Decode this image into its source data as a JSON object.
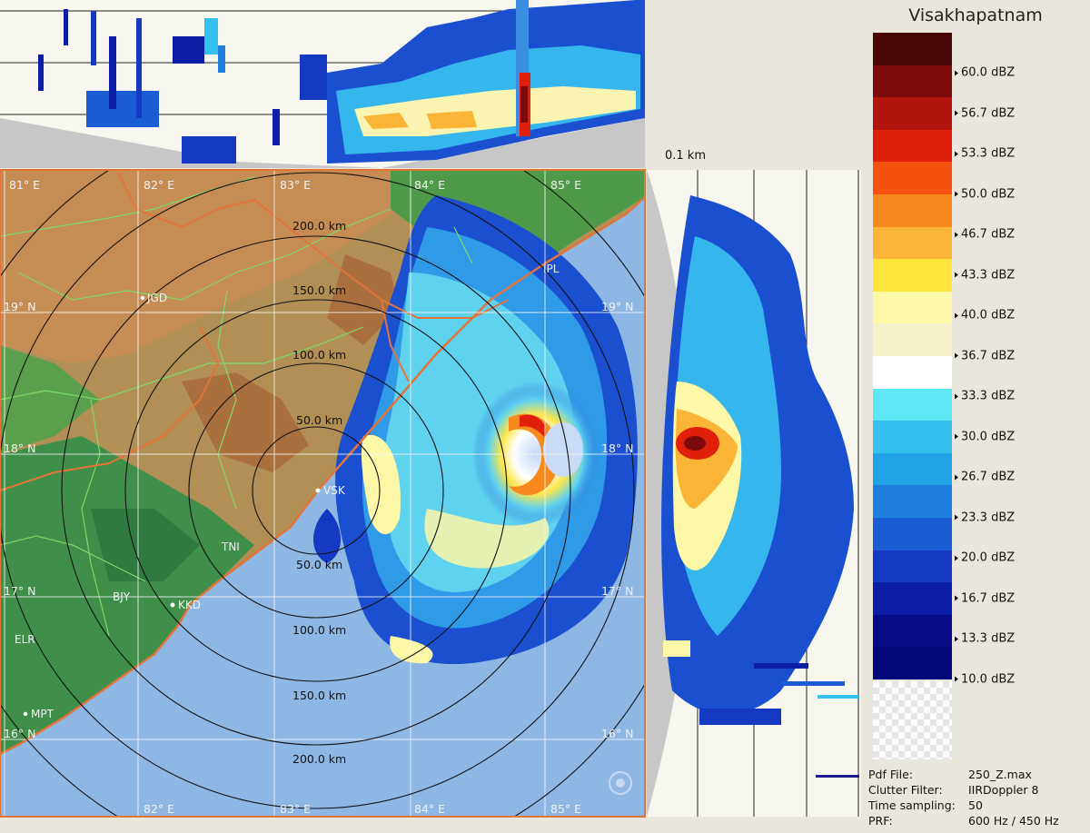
{
  "legend": {
    "station": "Visakhapatnam",
    "colors": [
      "#4a0606",
      "#7c0a0a",
      "#b1150d",
      "#e1200c",
      "#f6520f",
      "#f88a1d",
      "#fab436",
      "#fee53c",
      "#fdf7a8",
      "#f5f2c9",
      "#ffffff",
      "#5fe6f5",
      "#35c1ed",
      "#21a1e6",
      "#1f7fdc",
      "#1a5cd2",
      "#1539c2",
      "#0d1ea6",
      "#070c86",
      "#05087a"
    ],
    "ticks": [
      "60.0 dBZ",
      "56.7 dBZ",
      "53.3 dBZ",
      "50.0 dBZ",
      "46.7 dBZ",
      "43.3 dBZ",
      "40.0 dBZ",
      "36.7 dBZ",
      "33.3 dBZ",
      "30.0 dBZ",
      "26.7 dBZ",
      "23.3 dBZ",
      "20.0 dBZ",
      "16.7 dBZ",
      "13.3 dBZ",
      "10.0 dBZ"
    ]
  },
  "map": {
    "lon_labels": [
      "81° E",
      "82° E",
      "83° E",
      "84° E",
      "85° E"
    ],
    "lat_labels": [
      "19° N",
      "18° N",
      "17° N",
      "16° N"
    ],
    "range_labels": [
      "200.0 km",
      "150.0 km",
      "100.0 km",
      "50.0 km"
    ],
    "cities": [
      "JGD",
      "VSK",
      "BJY",
      "KKD",
      "ELR",
      "MPT",
      "TNI",
      "IPL"
    ],
    "height_label": "0.1 km"
  },
  "info": {
    "pdf_file_key": "Pdf File:",
    "pdf_file_val": "250_Z.max",
    "clutter_key": "Clutter Filter:",
    "clutter_val": "IIRDoppler 8",
    "sampling_key": "Time sampling:",
    "sampling_val": "50",
    "prf_key": "PRF:",
    "prf_val": "600 Hz / 450 Hz"
  }
}
